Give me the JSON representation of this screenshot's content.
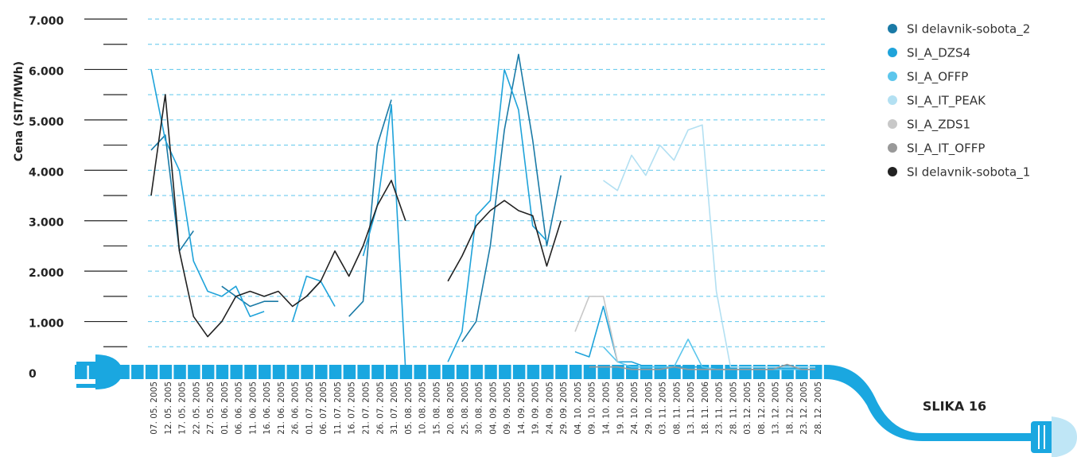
{
  "chart_data": {
    "type": "line",
    "y_label": "Cena (SIT/MWh)",
    "caption": "SLIKA 16",
    "categories": [
      "07. 05. 2005",
      "12. 05. 2005",
      "17. 05. 2005",
      "22. 05. 2005",
      "27. 05. 2005",
      "01. 06. 2005",
      "06. 06. 2005",
      "11. 06. 2005",
      "16. 06. 2005",
      "21. 06. 2005",
      "26. 06. 2005",
      "01. 07. 2005",
      "06. 07. 2005",
      "11. 07. 2005",
      "16. 07. 2005",
      "21. 07. 2005",
      "26. 07. 2005",
      "31. 07. 2005",
      "05. 08. 2005",
      "10. 08. 2005",
      "15. 08. 2005",
      "20. 08. 2005",
      "25. 08. 2005",
      "30. 08. 2005",
      "04. 09. 2005",
      "09. 09. 2005",
      "14. 09. 2005",
      "19. 09. 2005",
      "24. 09. 2005",
      "29. 09. 2005",
      "04. 10. 2005",
      "09. 10. 2005",
      "14. 10. 2005",
      "19. 10. 2005",
      "24. 10. 2005",
      "29. 10. 2005",
      "03. 11. 2005",
      "08. 11. 2005",
      "13. 11. 2005",
      "18. 11. 2006",
      "23. 11. 2005",
      "28. 11. 2005",
      "03. 12. 2005",
      "08. 12. 2005",
      "13. 12. 2005",
      "18. 12. 2005",
      "23. 12. 2005",
      "28. 12. 2005"
    ],
    "series": [
      {
        "name": "SI delavnik-sobota_2",
        "color": "#1a7aa6",
        "values": [
          4400,
          4700,
          2400,
          2800,
          null,
          1700,
          1500,
          1300,
          1400,
          1400,
          null,
          1500,
          1800,
          null,
          1100,
          1400,
          4500,
          5400,
          null,
          null,
          null,
          null,
          600,
          1000,
          2500,
          4800,
          6300,
          4600,
          2500,
          3900,
          null,
          null,
          null,
          null,
          null,
          null,
          null,
          null,
          null,
          null,
          null,
          null,
          null,
          null,
          null,
          null,
          null,
          null
        ]
      },
      {
        "name": "SI_A_DZS4",
        "color": "#1fa3da",
        "values": [
          6000,
          4600,
          4000,
          2200,
          1600,
          1500,
          1700,
          1100,
          1200,
          null,
          1000,
          1900,
          1800,
          1300,
          null,
          2300,
          3300,
          5300,
          50,
          null,
          null,
          200,
          800,
          3100,
          3400,
          6000,
          5200,
          2900,
          2600,
          null,
          400,
          300,
          1300,
          200,
          200,
          100,
          100,
          100,
          100,
          100,
          50,
          50,
          50,
          50,
          50,
          100,
          50,
          50
        ]
      },
      {
        "name": "SI_A_OFFP",
        "color": "#5cc6ec",
        "values": [
          null,
          null,
          null,
          null,
          null,
          null,
          null,
          null,
          null,
          null,
          null,
          null,
          null,
          null,
          null,
          null,
          null,
          null,
          null,
          null,
          null,
          null,
          null,
          null,
          null,
          null,
          null,
          null,
          null,
          null,
          300,
          null,
          500,
          200,
          100,
          100,
          100,
          100,
          650,
          100,
          50,
          50,
          50,
          50,
          50,
          50,
          50,
          50
        ]
      },
      {
        "name": "SI_A_IT_PEAK",
        "color": "#b3e0f2",
        "values": [
          null,
          null,
          null,
          null,
          null,
          null,
          null,
          null,
          null,
          null,
          null,
          null,
          null,
          null,
          null,
          null,
          null,
          null,
          null,
          null,
          null,
          null,
          null,
          null,
          null,
          null,
          null,
          null,
          null,
          null,
          null,
          null,
          3800,
          3600,
          4300,
          3900,
          4500,
          4200,
          4800,
          4900,
          1600,
          100,
          100,
          100,
          100,
          100,
          100,
          100
        ]
      },
      {
        "name": "SI_A_ZDS1",
        "color": "#c8c8c8",
        "values": [
          null,
          null,
          null,
          null,
          null,
          null,
          null,
          null,
          null,
          null,
          null,
          null,
          null,
          null,
          null,
          null,
          null,
          null,
          null,
          null,
          null,
          null,
          null,
          null,
          null,
          null,
          null,
          null,
          null,
          null,
          800,
          1500,
          1500,
          200,
          null,
          null,
          null,
          null,
          null,
          null,
          null,
          null,
          null,
          null,
          null,
          null,
          null,
          null
        ]
      },
      {
        "name": "SI_A_IT_OFFP",
        "color": "#999999",
        "values": [
          null,
          null,
          null,
          null,
          null,
          null,
          null,
          null,
          null,
          null,
          null,
          null,
          null,
          null,
          null,
          null,
          null,
          null,
          null,
          null,
          null,
          null,
          null,
          null,
          null,
          null,
          null,
          null,
          null,
          null,
          null,
          100,
          100,
          100,
          50,
          50,
          50,
          100,
          50,
          50,
          50,
          50,
          50,
          50,
          50,
          150,
          50,
          50
        ]
      },
      {
        "name": "SI delavnik-sobota_1",
        "color": "#222222",
        "values": [
          3500,
          5500,
          2400,
          1100,
          700,
          1000,
          1500,
          1600,
          1500,
          1600,
          1300,
          1500,
          1800,
          2400,
          1900,
          2500,
          3300,
          3800,
          3000,
          null,
          null,
          1800,
          2300,
          2900,
          3200,
          3400,
          3200,
          3100,
          2100,
          3000,
          null,
          null,
          null,
          null,
          null,
          null,
          null,
          null,
          null,
          null,
          null,
          null,
          null,
          null,
          null,
          null,
          null,
          null
        ]
      }
    ],
    "ylim": [
      0,
      7000
    ],
    "yticks": [
      0,
      {
        "value": 1000,
        "label": "1.000"
      },
      {
        "value": 2000,
        "label": "2.000"
      },
      {
        "value": 3000,
        "label": "3.000"
      },
      {
        "value": 4000,
        "label": "4.000"
      },
      {
        "value": 5000,
        "label": "5.000"
      },
      {
        "value": 6000,
        "label": "6.000"
      },
      {
        "value": 7000,
        "label": "7.000"
      }
    ],
    "yticks_minor": [
      500,
      1500,
      2500,
      3500,
      4500,
      5500,
      6500
    ],
    "grid": true,
    "legend": "top-right"
  }
}
